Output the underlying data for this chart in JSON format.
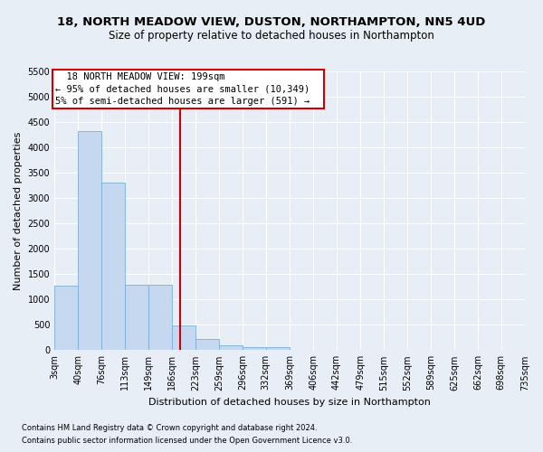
{
  "title": "18, NORTH MEADOW VIEW, DUSTON, NORTHAMPTON, NN5 4UD",
  "subtitle": "Size of property relative to detached houses in Northampton",
  "xlabel": "Distribution of detached houses by size in Northampton",
  "ylabel": "Number of detached properties",
  "footnote1": "Contains HM Land Registry data © Crown copyright and database right 2024.",
  "footnote2": "Contains public sector information licensed under the Open Government Licence v3.0.",
  "annotation_line1": "18 NORTH MEADOW VIEW: 199sqm",
  "annotation_line2": "← 95% of detached houses are smaller (10,349)",
  "annotation_line3": "5% of semi-detached houses are larger (591) →",
  "property_size": 199,
  "bin_edges": [
    3,
    40,
    76,
    113,
    149,
    186,
    223,
    259,
    296,
    332,
    369,
    406,
    442,
    479,
    515,
    552,
    589,
    625,
    662,
    698,
    735
  ],
  "bar_heights": [
    1270,
    4330,
    3300,
    1290,
    1290,
    490,
    215,
    90,
    65,
    60,
    0,
    0,
    0,
    0,
    0,
    0,
    0,
    0,
    0,
    0
  ],
  "bar_color": "#c5d8ef",
  "bar_edge_color": "#7bafd4",
  "vline_color": "#cc0000",
  "vline_x": 199,
  "ylim": [
    0,
    5500
  ],
  "yticks": [
    0,
    500,
    1000,
    1500,
    2000,
    2500,
    3000,
    3500,
    4000,
    4500,
    5000,
    5500
  ],
  "fig_bg_color": "#e8eef5",
  "axes_bg_color": "#e8eef5",
  "grid_color": "#ffffff",
  "box_edge_color": "#cc0000",
  "box_face_color": "#ffffff",
  "title_fontsize": 9.5,
  "subtitle_fontsize": 8.5,
  "axis_label_fontsize": 8,
  "tick_fontsize": 7,
  "annot_fontsize": 7.5,
  "footnote_fontsize": 6
}
